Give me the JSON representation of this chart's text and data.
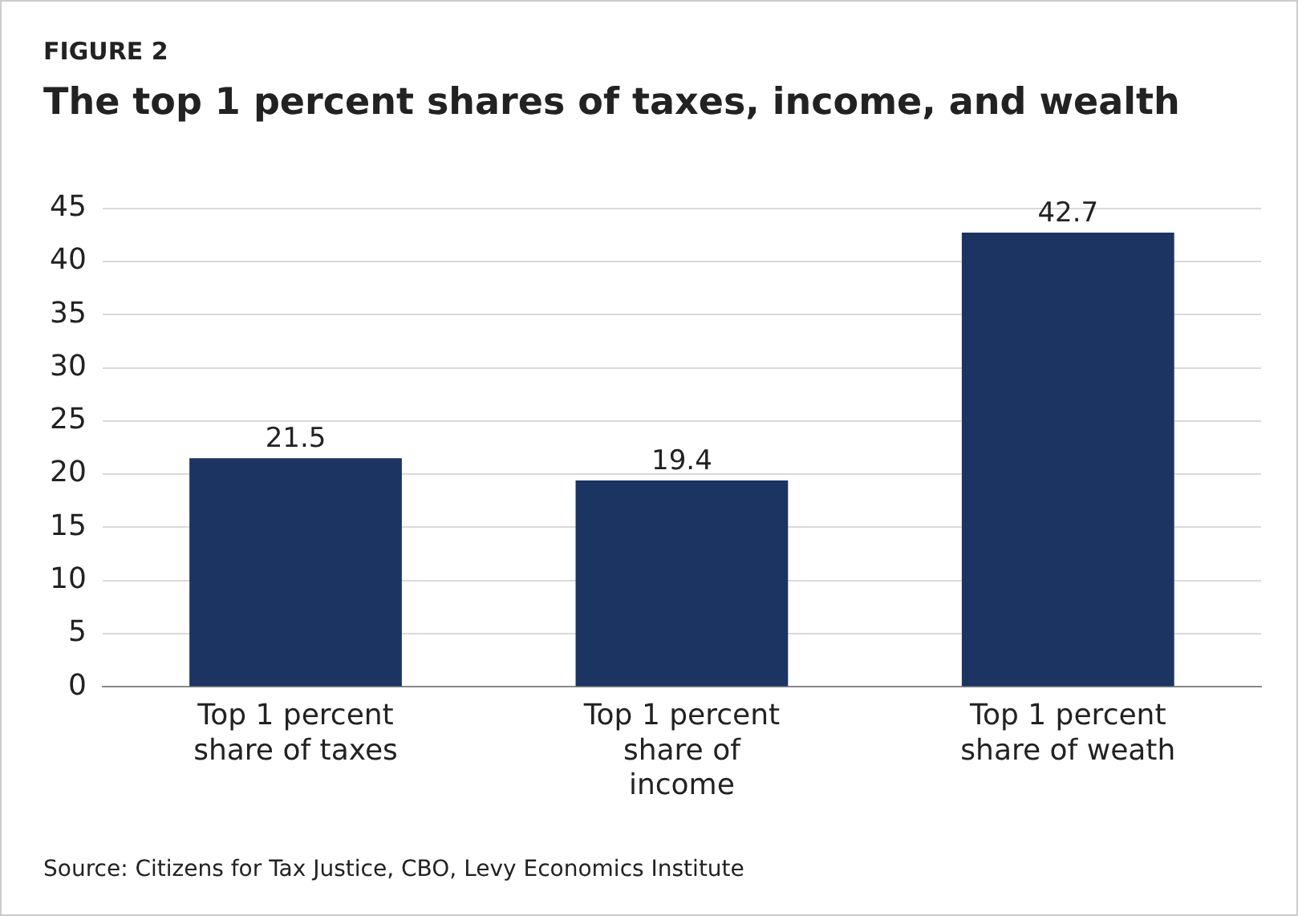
{
  "chart_data": {
    "type": "bar",
    "subtitle": "FIGURE 2",
    "title": "The top 1 percent shares of taxes, income, and wealth",
    "categories": [
      "Top 1 percent share of taxes",
      "Top 1 percent share of income",
      "Top 1 percent share of weath"
    ],
    "values": [
      21.5,
      19.4,
      42.7
    ],
    "color": "#1c3461",
    "ylim": [
      0,
      45
    ],
    "yticks": [
      0,
      5,
      10,
      15,
      20,
      25,
      30,
      35,
      40,
      45
    ],
    "grid": "y",
    "legend": false,
    "data_labels": true,
    "annotations": [
      "Source: Citizens for Tax Justice, CBO, Levy Economics Institute"
    ]
  }
}
